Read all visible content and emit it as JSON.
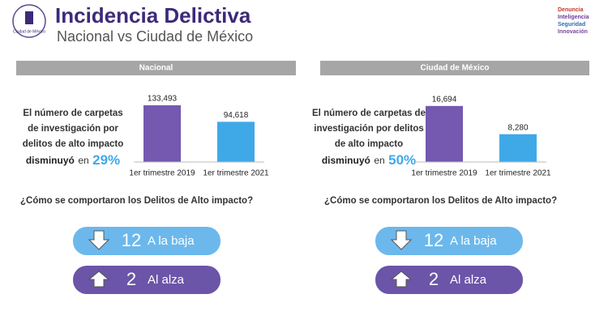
{
  "header": {
    "title": "Incidencia Delictiva",
    "subtitle": "Nacional vs Ciudad de México",
    "logo_left": "Ciudad de México",
    "logo_right": [
      "Denuncia",
      "Inteligencia",
      "Seguridad",
      "Innovación"
    ]
  },
  "panels": [
    {
      "heading": "Nacional",
      "text_lines": [
        "El número de carpetas",
        "de investigación por",
        "delitos de alto impacto"
      ],
      "verb": "disminuyó",
      "connector": "en",
      "percent": "29%",
      "question": "¿Cómo se comportaron los Delitos de Alto impacto?",
      "down_count": 12,
      "down_label": "A la baja",
      "up_count": 2,
      "up_label": "Al alza"
    },
    {
      "heading": "Ciudad de México",
      "text_lines": [
        "El número de carpetas de",
        "investigación por delitos",
        "de alto impacto"
      ],
      "verb": "disminuyó",
      "connector": "en",
      "percent": "50%",
      "question": "¿Cómo se comportaron los Delitos de Alto impacto?",
      "down_count": 12,
      "down_label": "A la baja",
      "up_count": 2,
      "up_label": "Al alza"
    }
  ],
  "chart_data": [
    {
      "type": "bar",
      "categories": [
        "1er trimestre 2019",
        "1er trimestre 2021"
      ],
      "values": [
        133493,
        94618
      ],
      "value_labels": [
        "133,493",
        "94,618"
      ],
      "colors": [
        "#7558b0",
        "#3fa9e8"
      ],
      "ylim": [
        0,
        143000
      ]
    },
    {
      "type": "bar",
      "categories": [
        "1er trimestre 2019",
        "1er trimestre 2021"
      ],
      "values": [
        16694,
        8280
      ],
      "value_labels": [
        "16,694",
        "8,280"
      ],
      "colors": [
        "#7558b0",
        "#3fa9e8"
      ],
      "ylim": [
        0,
        18100
      ]
    }
  ]
}
